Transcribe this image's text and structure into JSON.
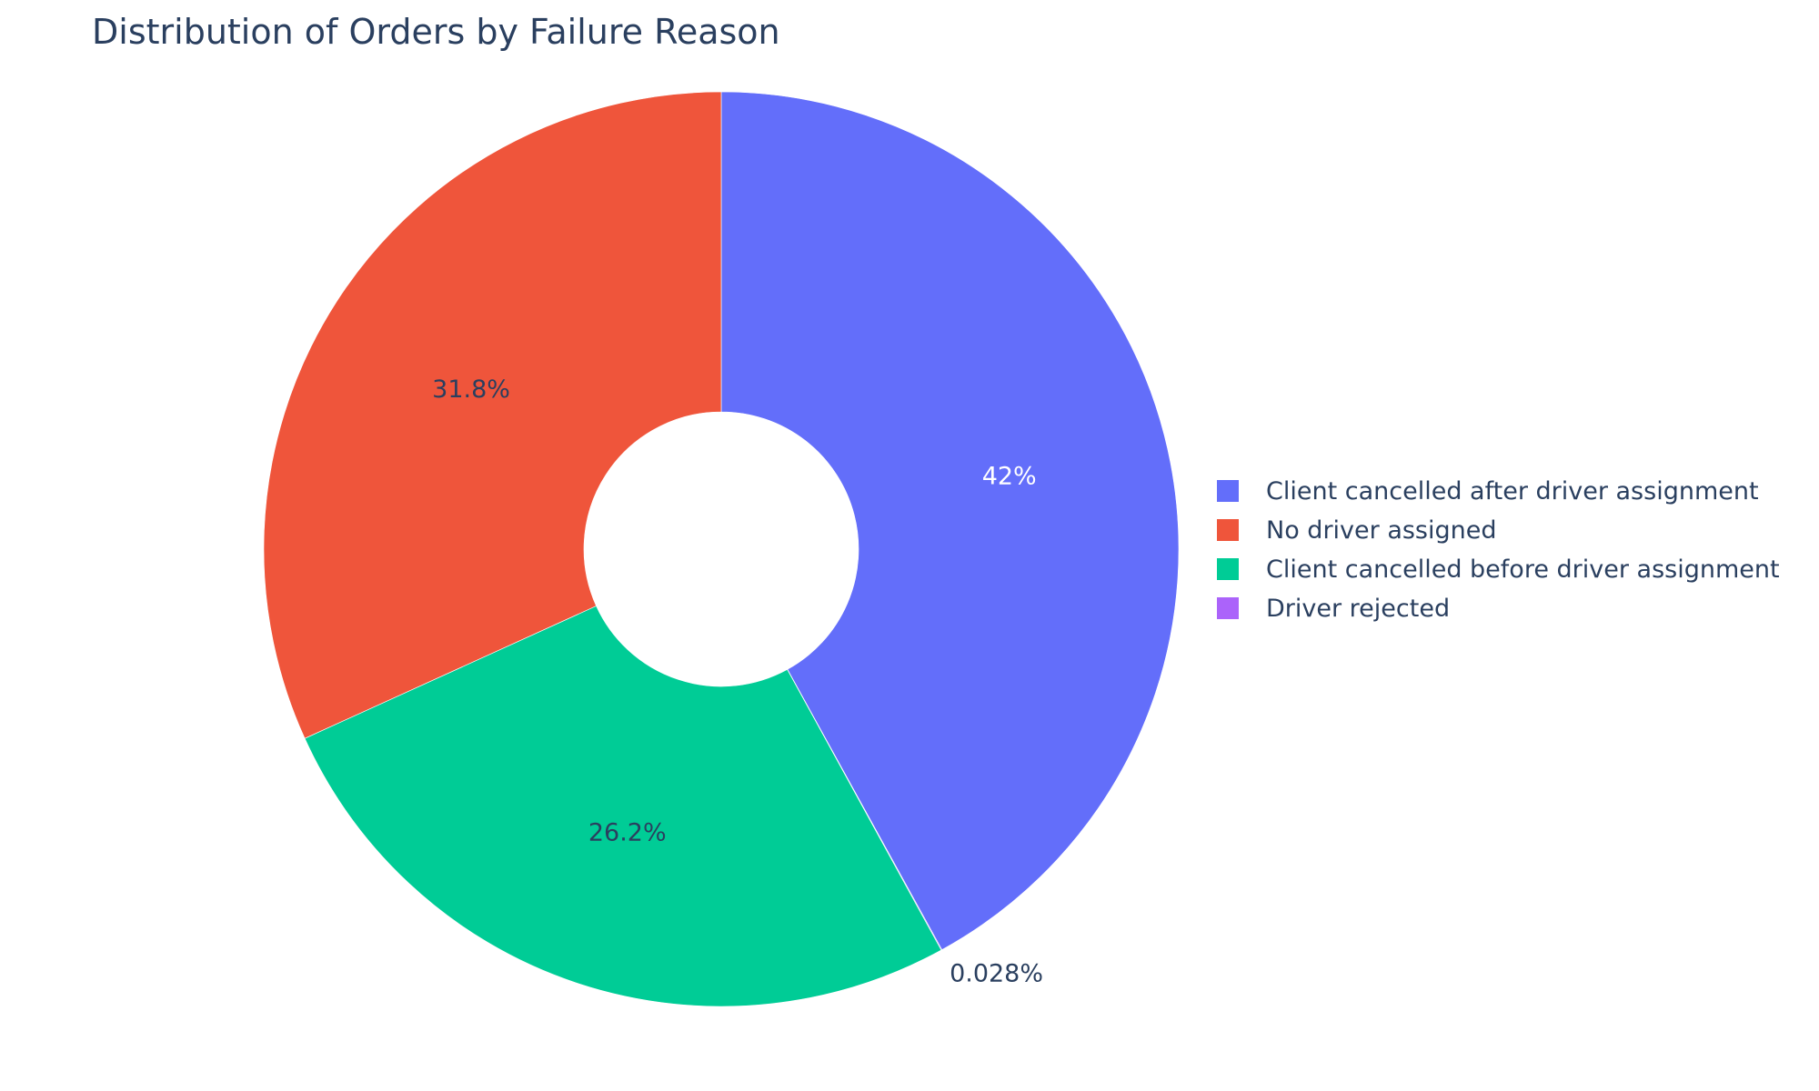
{
  "chart_data": {
    "type": "pie",
    "hole": true,
    "title": "Distribution of Orders by Failure Reason",
    "direction": "clockwise",
    "start_angle_deg": 0,
    "slices": [
      {
        "label": "Client cancelled after driver assignment",
        "value": 42.0,
        "percent_text": "42%",
        "color": "#636efa",
        "text_color": "#ffffff"
      },
      {
        "label": "Driver rejected",
        "value": 0.028,
        "percent_text": "0.028%",
        "color": "#ab63fa",
        "text_color": "#2a3f5f"
      },
      {
        "label": "Client cancelled before driver assignment",
        "value": 26.2,
        "percent_text": "26.2%",
        "color": "#00cc96",
        "text_color": "#2a3f5f"
      },
      {
        "label": "No driver assigned",
        "value": 31.8,
        "percent_text": "31.8%",
        "color": "#ef553b",
        "text_color": "#2a3f5f"
      }
    ],
    "legend": {
      "placement": "right",
      "order": [
        "Client cancelled after driver assignment",
        "No driver assigned",
        "Client cancelled before driver assignment",
        "Driver rejected"
      ]
    }
  }
}
